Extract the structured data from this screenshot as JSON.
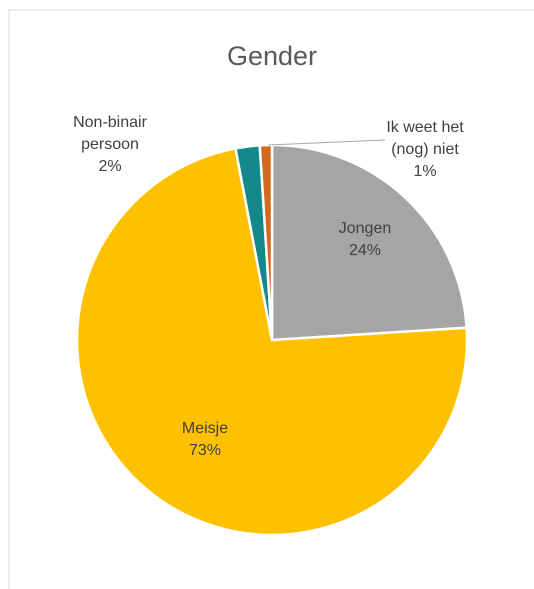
{
  "chart_data": {
    "type": "pie",
    "title": "Gender",
    "categories": [
      "Jongen",
      "Meisje",
      "Non-binair persoon",
      "Ik weet het (nog) niet"
    ],
    "values": [
      24,
      73,
      2,
      1
    ],
    "value_labels": [
      "24%",
      "73%",
      "2%",
      "1%"
    ],
    "colors": [
      "#A5A5A5",
      "#FFC000",
      "#14898C",
      "#D2691E"
    ]
  }
}
